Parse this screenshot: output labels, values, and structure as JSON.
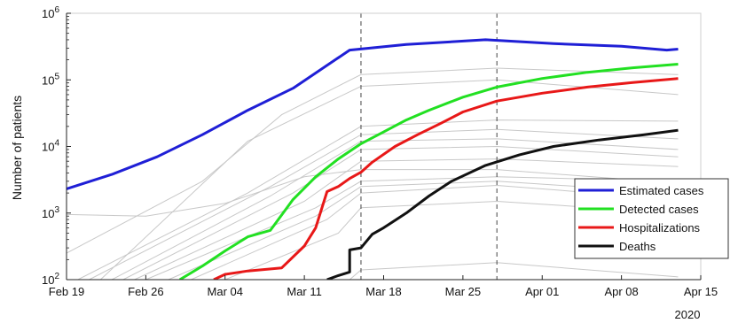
{
  "chart_data": {
    "type": "line",
    "title": "",
    "xlabel": "",
    "ylabel": "Number of patients",
    "x_axis": {
      "type": "date",
      "ticks": [
        "Feb 19",
        "Feb 26",
        "Mar 04",
        "Mar 11",
        "Mar 18",
        "Mar 25",
        "Apr 01",
        "Apr 08",
        "Apr 15"
      ],
      "range": [
        "2020-02-19",
        "2020-04-15"
      ],
      "year_label": "2020"
    },
    "y_axis": {
      "scale": "log",
      "range": [
        100,
        1000000
      ],
      "ticks": [
        {
          "value": 100,
          "base": "10",
          "exp": "2"
        },
        {
          "value": 1000,
          "base": "10",
          "exp": "3"
        },
        {
          "value": 10000,
          "base": "10",
          "exp": "4"
        },
        {
          "value": 100000,
          "base": "10",
          "exp": "5"
        },
        {
          "value": 1000000,
          "base": "10",
          "exp": "6"
        }
      ]
    },
    "grid": false,
    "legend_position": "bottom-right",
    "vertical_markers": [
      "2020-03-16",
      "2020-03-28"
    ],
    "series": [
      {
        "name": "Estimated cases",
        "color": "#1f1fd6",
        "data": [
          [
            "2020-02-19",
            2300
          ],
          [
            "2020-02-23",
            3800
          ],
          [
            "2020-02-27",
            7000
          ],
          [
            "2020-03-02",
            15000
          ],
          [
            "2020-03-06",
            35000
          ],
          [
            "2020-03-10",
            75000
          ],
          [
            "2020-03-15",
            280000
          ],
          [
            "2020-03-20",
            340000
          ],
          [
            "2020-03-27",
            400000
          ],
          [
            "2020-04-02",
            350000
          ],
          [
            "2020-04-08",
            320000
          ],
          [
            "2020-04-12",
            280000
          ],
          [
            "2020-04-13",
            290000
          ]
        ]
      },
      {
        "name": "Detected cases",
        "color": "#22e022",
        "data": [
          [
            "2020-02-29",
            100
          ],
          [
            "2020-03-02",
            160
          ],
          [
            "2020-03-04",
            270
          ],
          [
            "2020-03-06",
            440
          ],
          [
            "2020-03-08",
            550
          ],
          [
            "2020-03-10",
            1600
          ],
          [
            "2020-03-12",
            3500
          ],
          [
            "2020-03-14",
            6500
          ],
          [
            "2020-03-16",
            11000
          ],
          [
            "2020-03-18",
            16500
          ],
          [
            "2020-03-20",
            25000
          ],
          [
            "2020-03-22",
            35000
          ],
          [
            "2020-03-25",
            55000
          ],
          [
            "2020-03-28",
            78000
          ],
          [
            "2020-04-01",
            105000
          ],
          [
            "2020-04-05",
            130000
          ],
          [
            "2020-04-09",
            152000
          ],
          [
            "2020-04-13",
            172000
          ]
        ]
      },
      {
        "name": "Hospitalizations",
        "color": "#e81818",
        "data": [
          [
            "2020-03-03",
            100
          ],
          [
            "2020-03-04",
            120
          ],
          [
            "2020-03-06",
            135
          ],
          [
            "2020-03-09",
            150
          ],
          [
            "2020-03-11",
            320
          ],
          [
            "2020-03-12",
            600
          ],
          [
            "2020-03-13",
            2100
          ],
          [
            "2020-03-14",
            2500
          ],
          [
            "2020-03-15",
            3300
          ],
          [
            "2020-03-16",
            4100
          ],
          [
            "2020-03-17",
            5800
          ],
          [
            "2020-03-19",
            10000
          ],
          [
            "2020-03-21",
            15000
          ],
          [
            "2020-03-23",
            22000
          ],
          [
            "2020-03-25",
            33000
          ],
          [
            "2020-03-28",
            48000
          ],
          [
            "2020-04-01",
            63000
          ],
          [
            "2020-04-05",
            78000
          ],
          [
            "2020-04-09",
            91000
          ],
          [
            "2020-04-13",
            105000
          ]
        ]
      },
      {
        "name": "Deaths",
        "color": "#111111",
        "data": [
          [
            "2020-03-13",
            100
          ],
          [
            "2020-03-14",
            115
          ],
          [
            "2020-03-15",
            130
          ],
          [
            "2020-03-15",
            280
          ],
          [
            "2020-03-16",
            300
          ],
          [
            "2020-03-17",
            480
          ],
          [
            "2020-03-18",
            600
          ],
          [
            "2020-03-20",
            1000
          ],
          [
            "2020-03-22",
            1800
          ],
          [
            "2020-03-24",
            3000
          ],
          [
            "2020-03-27",
            5200
          ],
          [
            "2020-03-30",
            7500
          ],
          [
            "2020-04-02",
            10000
          ],
          [
            "2020-04-06",
            12500
          ],
          [
            "2020-04-10",
            15000
          ],
          [
            "2020-04-13",
            17500
          ]
        ]
      }
    ],
    "background_series_color": "#c8c8c8",
    "background_series": [
      [
        [
          "2020-02-19",
          950
        ],
        [
          "2020-02-26",
          900
        ],
        [
          "2020-03-04",
          1400
        ],
        [
          "2020-03-11",
          3500
        ],
        [
          "2020-03-16",
          4500
        ],
        [
          "2020-03-28",
          4500
        ],
        [
          "2020-04-13",
          2800
        ]
      ],
      [
        [
          "2020-02-19",
          250
        ],
        [
          "2020-03-02",
          3000
        ],
        [
          "2020-03-09",
          30000
        ],
        [
          "2020-03-16",
          120000
        ],
        [
          "2020-03-28",
          150000
        ],
        [
          "2020-04-13",
          120000
        ]
      ],
      [
        [
          "2020-02-22",
          100
        ],
        [
          "2020-03-06",
          12000
        ],
        [
          "2020-03-16",
          80000
        ],
        [
          "2020-03-28",
          100000
        ],
        [
          "2020-04-13",
          60000
        ]
      ],
      [
        [
          "2020-02-20",
          100
        ],
        [
          "2020-03-06",
          2000
        ],
        [
          "2020-03-16",
          20000
        ],
        [
          "2020-03-28",
          25000
        ],
        [
          "2020-04-13",
          24000
        ]
      ],
      [
        [
          "2020-02-21",
          100
        ],
        [
          "2020-03-08",
          2500
        ],
        [
          "2020-03-16",
          15000
        ],
        [
          "2020-03-28",
          18000
        ],
        [
          "2020-04-13",
          13000
        ]
      ],
      [
        [
          "2020-02-23",
          100
        ],
        [
          "2020-03-08",
          1800
        ],
        [
          "2020-03-16",
          12000
        ],
        [
          "2020-03-28",
          13000
        ],
        [
          "2020-04-13",
          9000
        ]
      ],
      [
        [
          "2020-02-24",
          100
        ],
        [
          "2020-03-10",
          2000
        ],
        [
          "2020-03-16",
          9000
        ],
        [
          "2020-03-28",
          10000
        ],
        [
          "2020-04-13",
          7000
        ]
      ],
      [
        [
          "2020-02-25",
          100
        ],
        [
          "2020-03-11",
          1500
        ],
        [
          "2020-03-16",
          6000
        ],
        [
          "2020-03-28",
          6500
        ],
        [
          "2020-04-13",
          5000
        ]
      ],
      [
        [
          "2020-02-26",
          100
        ],
        [
          "2020-03-12",
          1200
        ],
        [
          "2020-03-16",
          3000
        ],
        [
          "2020-03-28",
          3500
        ],
        [
          "2020-04-13",
          3000
        ]
      ],
      [
        [
          "2020-02-28",
          100
        ],
        [
          "2020-03-12",
          900
        ],
        [
          "2020-03-16",
          2500
        ],
        [
          "2020-03-28",
          3000
        ],
        [
          "2020-04-13",
          2000
        ]
      ],
      [
        [
          "2020-03-01",
          100
        ],
        [
          "2020-03-13",
          800
        ],
        [
          "2020-03-16",
          2000
        ],
        [
          "2020-03-28",
          2600
        ],
        [
          "2020-04-13",
          1600
        ]
      ],
      [
        [
          "2020-03-04",
          100
        ],
        [
          "2020-03-14",
          500
        ],
        [
          "2020-03-16",
          1200
        ],
        [
          "2020-03-28",
          1500
        ],
        [
          "2020-04-13",
          1000
        ]
      ],
      [
        [
          "2020-03-15",
          100
        ],
        [
          "2020-03-16",
          140
        ],
        [
          "2020-03-28",
          180
        ],
        [
          "2020-04-13",
          110
        ]
      ]
    ]
  }
}
